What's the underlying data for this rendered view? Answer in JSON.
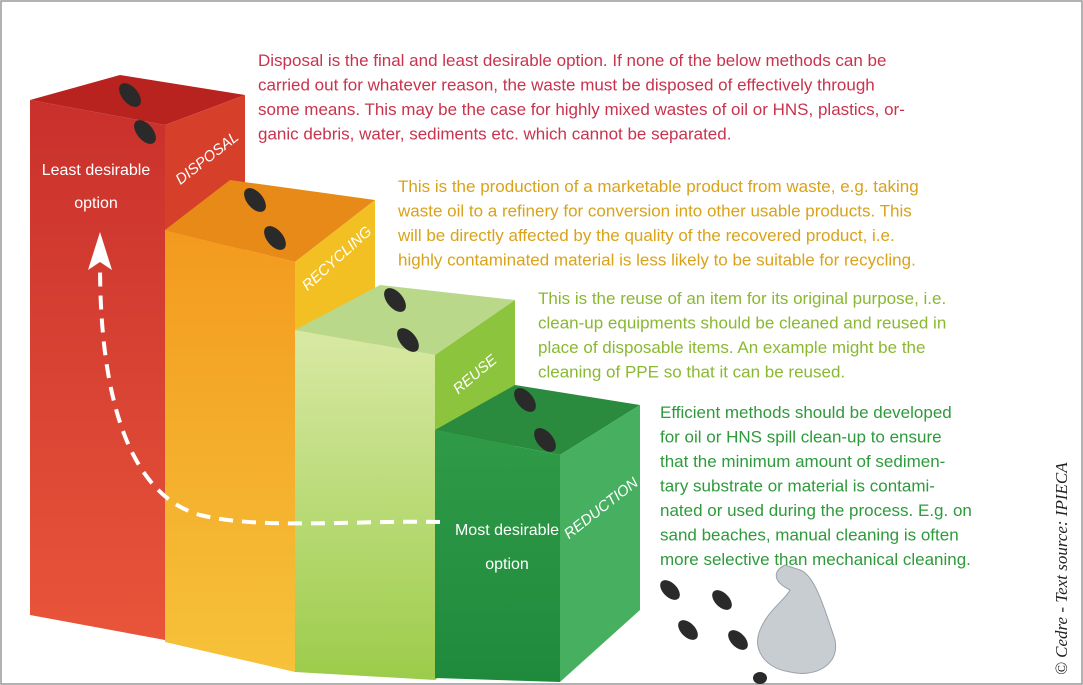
{
  "steps": [
    {
      "label": "DISPOSAL",
      "description": [
        "Disposal is the final and least desirable option. If none of the below methods can be",
        "carried out for whatever reason, the waste must be disposed of effectively through",
        "some means. This may be the case for highly mixed wastes of oil or HNS, plastics, or-",
        "ganic debris, water, sediments etc. which cannot be separated."
      ]
    },
    {
      "label": "RECYCLING",
      "description": [
        "This is the production of a marketable product from waste, e.g. taking",
        "waste oil to a refinery for conversion into other usable products. This",
        "will be directly affected by the quality of the recovered product, i.e.",
        "highly contaminated material is less likely to be suitable for recycling."
      ]
    },
    {
      "label": "REUSE",
      "description": [
        "This is the reuse of an item for its original purpose, i.e.",
        "clean-up equipments should be cleaned and reused in",
        "place of disposable items. An example might be the",
        "cleaning of PPE so that it can be reused."
      ]
    },
    {
      "label": "REDUCTION",
      "description": [
        "Efficient methods should be developed",
        "for oil or HNS spill clean-up to ensure",
        "that the minimum amount of sedimen-",
        "tary substrate or material is contami-",
        "nated or used during the process. E.g. on",
        "sand beaches, manual cleaning is often",
        "more selective than mechanical cleaning."
      ]
    }
  ],
  "annotations": {
    "least": [
      "Least desirable",
      "option"
    ],
    "most": [
      "Most desirable",
      "option"
    ]
  },
  "credit": "© Cedre - Text source: IPIECA"
}
